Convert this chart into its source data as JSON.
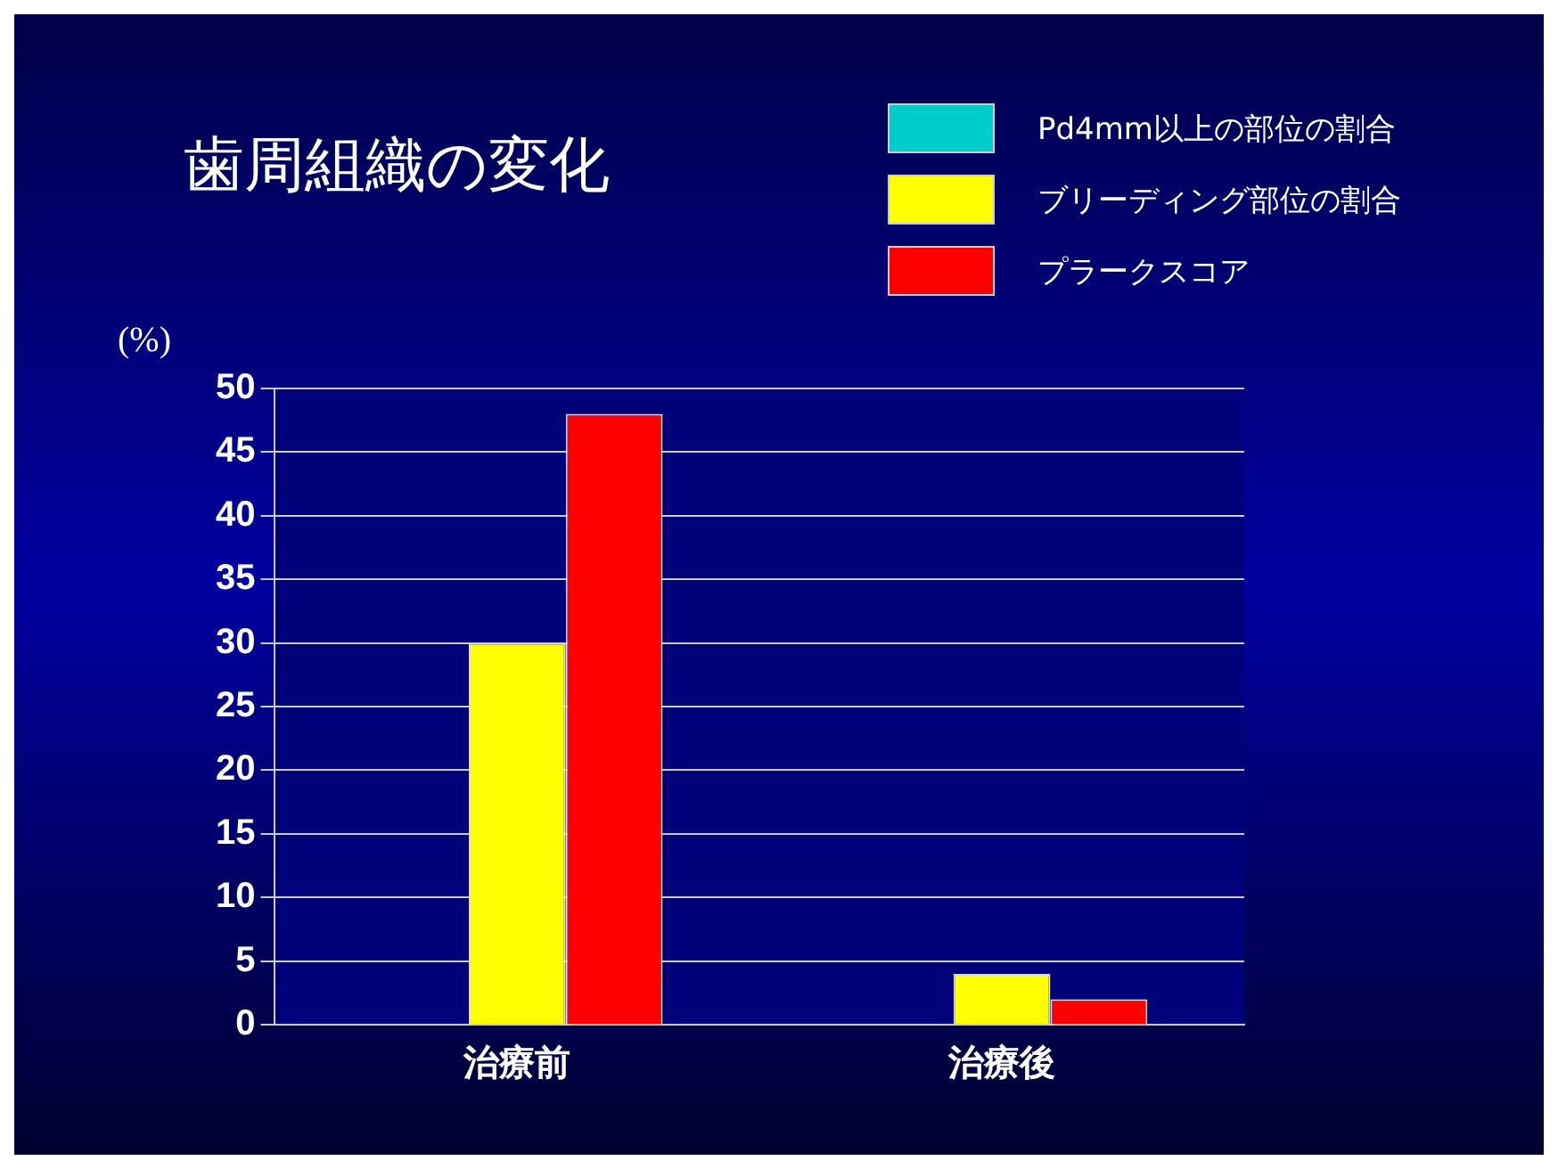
{
  "chart_data": {
    "type": "bar",
    "title": "歯周組織の変化",
    "ylabel": "(%)",
    "categories": [
      "治療前",
      "治療後"
    ],
    "series": [
      {
        "name": "Pd4mm以上の部位の割合",
        "color": "#00cccc",
        "values": [
          0,
          0
        ]
      },
      {
        "name": "ブリーディング部位の割合",
        "color": "#ffff00",
        "values": [
          30,
          4
        ]
      },
      {
        "name": "プラークスコア",
        "color": "#ff0000",
        "values": [
          48,
          2
        ]
      }
    ],
    "ylim": [
      0,
      50
    ],
    "yticks": [
      0,
      5,
      10,
      15,
      20,
      25,
      30,
      35,
      40,
      45,
      50
    ],
    "grid": "y",
    "legend": "top right"
  }
}
